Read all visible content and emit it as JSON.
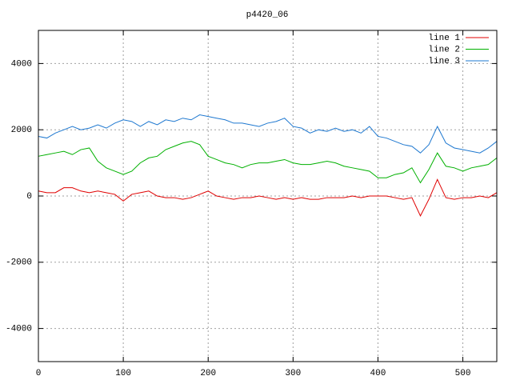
{
  "chart_data": {
    "type": "line",
    "title": "p4420_06",
    "x": [
      0,
      10,
      20,
      30,
      40,
      50,
      60,
      70,
      80,
      90,
      100,
      110,
      120,
      130,
      140,
      150,
      160,
      170,
      180,
      190,
      200,
      210,
      220,
      230,
      240,
      250,
      260,
      270,
      280,
      290,
      300,
      310,
      320,
      330,
      340,
      350,
      360,
      370,
      380,
      390,
      400,
      410,
      420,
      430,
      440,
      450,
      460,
      470,
      480,
      490,
      500,
      510,
      520,
      530,
      540
    ],
    "series": [
      {
        "name": "line 1",
        "color": "#e00000",
        "values": [
          150,
          100,
          100,
          250,
          250,
          150,
          100,
          150,
          100,
          50,
          -150,
          50,
          100,
          150,
          0,
          -50,
          -50,
          -100,
          -50,
          50,
          150,
          0,
          -50,
          -100,
          -50,
          -50,
          0,
          -50,
          -100,
          -50,
          -100,
          -50,
          -100,
          -100,
          -50,
          -50,
          -50,
          0,
          -50,
          0,
          0,
          0,
          -50,
          -100,
          -50,
          -600,
          -100,
          500,
          -50,
          -100,
          -50,
          -50,
          0,
          -50,
          100
        ]
      },
      {
        "name": "line 2",
        "color": "#00b000",
        "values": [
          1200,
          1250,
          1300,
          1350,
          1250,
          1400,
          1450,
          1050,
          850,
          750,
          650,
          750,
          1000,
          1150,
          1200,
          1400,
          1500,
          1600,
          1650,
          1550,
          1200,
          1100,
          1000,
          950,
          850,
          950,
          1000,
          1000,
          1050,
          1100,
          1000,
          950,
          950,
          1000,
          1050,
          1000,
          900,
          850,
          800,
          750,
          550,
          550,
          650,
          700,
          850,
          400,
          800,
          1300,
          900,
          850,
          750,
          850,
          900,
          950,
          1150
        ]
      },
      {
        "name": "line 3",
        "color": "#1e78d0",
        "values": [
          1800,
          1750,
          1900,
          2000,
          2100,
          2000,
          2050,
          2150,
          2050,
          2200,
          2300,
          2250,
          2100,
          2250,
          2150,
          2300,
          2250,
          2350,
          2300,
          2450,
          2400,
          2350,
          2300,
          2200,
          2200,
          2150,
          2100,
          2200,
          2250,
          2350,
          2100,
          2050,
          1900,
          2000,
          1950,
          2050,
          1950,
          2000,
          1900,
          2100,
          1800,
          1750,
          1650,
          1550,
          1500,
          1300,
          1550,
          2100,
          1600,
          1450,
          1400,
          1350,
          1300,
          1450,
          1650
        ]
      }
    ],
    "xlim": [
      0,
      540
    ],
    "ylim": [
      -5000,
      5000
    ],
    "xticks": [
      0,
      100,
      200,
      300,
      400,
      500
    ],
    "yticks": [
      -4000,
      -2000,
      0,
      2000,
      4000
    ],
    "grid": true,
    "legend": "top-right"
  }
}
